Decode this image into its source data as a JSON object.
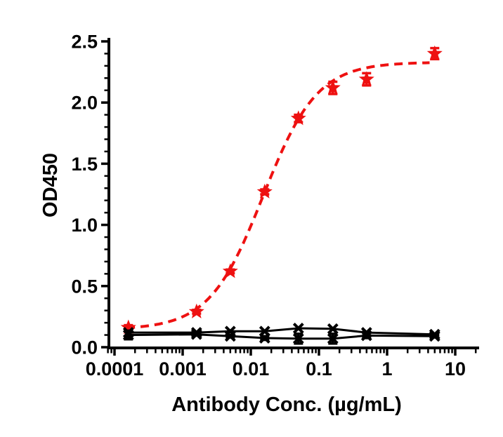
{
  "chart_data": {
    "type": "scatter",
    "title": "",
    "xlabel": "Antibody Conc. (µg/mL)",
    "ylabel": "OD450",
    "x_scale": "log",
    "xlim": [
      8e-05,
      20
    ],
    "ylim": [
      0.0,
      2.5
    ],
    "x_ticks": [
      0.0001,
      0.001,
      0.01,
      0.1,
      1,
      10
    ],
    "x_tick_labels": [
      "0.0001",
      "0.001",
      "0.01",
      "0.1",
      "1",
      "10"
    ],
    "y_ticks": [
      0.0,
      0.5,
      1.0,
      1.5,
      2.0,
      2.5
    ],
    "y_tick_labels": [
      "0.0",
      "0.5",
      "1.0",
      "1.5",
      "2.0",
      "2.5"
    ],
    "grid": false,
    "legend": "none",
    "colors": {
      "red_series": "#ee1111",
      "black_series": "#000000",
      "axis": "#000000"
    },
    "series": [
      {
        "name": "red-dashed-star",
        "color": "#ee1111",
        "marker": "star",
        "line": "dashed-fit",
        "x": [
          0.00016,
          0.0016,
          0.005,
          0.016,
          0.05,
          0.16,
          0.5,
          5
        ],
        "y": [
          0.16,
          0.29,
          0.62,
          1.27,
          1.87,
          2.12,
          2.19,
          2.4
        ],
        "err": [
          0.02,
          0.015,
          0.015,
          0.02,
          0.03,
          0.05,
          0.05,
          0.045
        ],
        "fit": {
          "model": "4PL",
          "bottom": 0.145,
          "top": 2.33,
          "ec50": 0.0152,
          "hill": 1.1,
          "draw_range": [
            0.00015,
            4.2
          ]
        }
      },
      {
        "name": "black-solid-x-upper",
        "color": "#000000",
        "marker": "x",
        "line": "solid",
        "x": [
          0.00016,
          0.0016,
          0.005,
          0.016,
          0.05,
          0.16,
          0.5,
          5
        ],
        "y": [
          0.12,
          0.12,
          0.13,
          0.13,
          0.155,
          0.15,
          0.12,
          0.105
        ],
        "err": [
          0,
          0,
          0,
          0,
          0,
          0,
          0,
          0
        ]
      },
      {
        "name": "black-solid-x-lower",
        "color": "#000000",
        "marker": "x",
        "line": "solid",
        "x": [
          0.00016,
          0.0016,
          0.005,
          0.016,
          0.05,
          0.16,
          0.5,
          5
        ],
        "y": [
          0.1,
          0.105,
          0.09,
          0.075,
          0.07,
          0.07,
          0.095,
          0.09
        ],
        "err": [
          0.035,
          0.01,
          0.01,
          0.015,
          0.04,
          0.04,
          0.02,
          0.01
        ]
      }
    ]
  }
}
